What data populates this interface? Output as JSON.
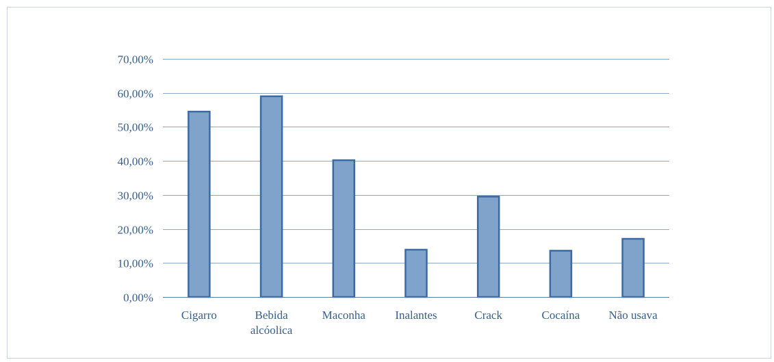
{
  "chart_data": {
    "type": "bar",
    "categories": [
      "Cigarro",
      "Bebida alcóolica",
      "Maconha",
      "Inalantes",
      "Crack",
      "Cocaína",
      "Não usava"
    ],
    "category_lines": [
      [
        "Cigarro"
      ],
      [
        "Bebida",
        "alcóolica"
      ],
      [
        "Maconha"
      ],
      [
        "Inalantes"
      ],
      [
        "Crack"
      ],
      [
        "Cocaína"
      ],
      [
        "Não usava"
      ]
    ],
    "values": [
      54.5,
      59.0,
      40.2,
      13.9,
      29.5,
      13.6,
      17.1
    ],
    "ylim": [
      0,
      70
    ],
    "yticks": [
      0,
      10,
      20,
      30,
      40,
      50,
      60,
      70
    ],
    "ytick_labels": [
      "0,00%",
      "10,00%",
      "20,00%",
      "30,00%",
      "40,00%",
      "50,00%",
      "60,00%",
      "70,00%"
    ],
    "title": "",
    "xlabel": "",
    "ylabel": "",
    "grid": true,
    "legend": "none",
    "colors": {
      "bar_fill": "#7fa3cb",
      "bar_stroke": "#3a6aa3",
      "grid": "#8aa9c8",
      "axis": "#5b7fa8",
      "text": "#335f94"
    }
  }
}
